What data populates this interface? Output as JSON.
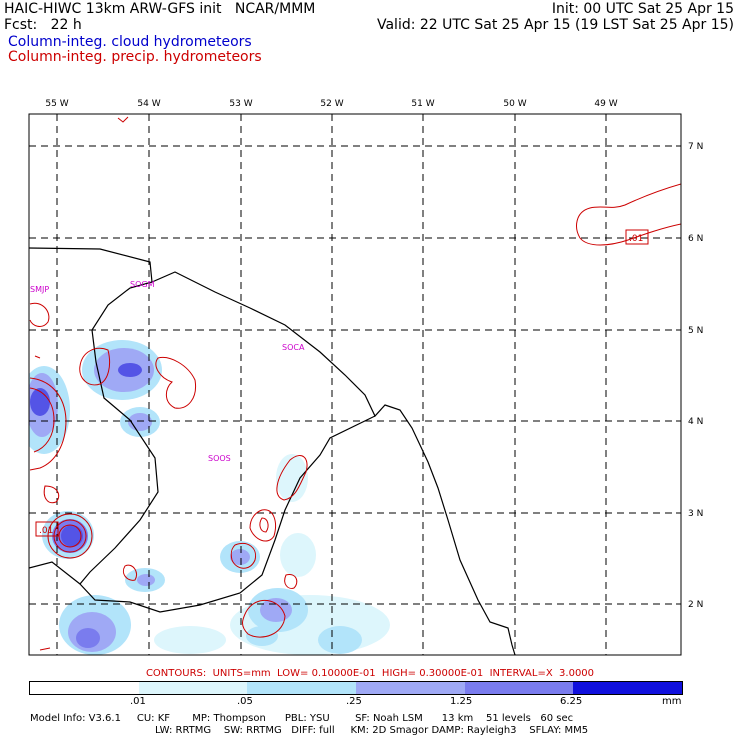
{
  "header": {
    "title": "HAIC-HIWC 13km ARW-GFS init   NCAR/MMM",
    "fcst": "Fcst:   22 h",
    "init": "Init: 00 UTC Sat 25 Apr 15",
    "valid": "Valid: 22 UTC Sat 25 Apr 15 (19 LST Sat 25 Apr 15)",
    "field1": "Column-integ. cloud hydrometeors",
    "field2": "Column-integ. precip. hydrometeors"
  },
  "map": {
    "lon_labels": [
      "55 W",
      "54 W",
      "53 W",
      "52 W",
      "51 W",
      "50 W",
      "49 W"
    ],
    "lat_labels": [
      "7 N",
      "6 N",
      "5 N",
      "4 N",
      "3 N",
      "2 N"
    ],
    "stations": [
      "SMJP",
      "SOGM",
      "SOCA",
      "SOOS"
    ],
    "contour_labels": [
      ".01",
      ".01"
    ]
  },
  "contours_info": "CONTOURS:  UNITS=mm  LOW= 0.10000E-01  HIGH= 0.30000E-01  INTERVAL=X  3.0000",
  "colorbar": {
    "ticks": [
      ".01",
      ".05",
      ".25",
      "1.25",
      "6.25"
    ],
    "unit": "mm",
    "colors": [
      "#ffffff",
      "#ddf6fc",
      "#b2e4fa",
      "#9fa9f5",
      "#7a7cee",
      "#5454e6",
      "#1010dd"
    ]
  },
  "model_info": {
    "line1": "Model Info: V3.6.1     CU: KF       MP: Thompson      PBL: YSU        SF: Noah LSM      13 km    51 levels   60 sec",
    "line2": "LW: RRTMG    SW: RRTMG   DIFF: full     KM: 2D Smagor DAMP: Rayleigh3    SFLAY: MM5"
  }
}
